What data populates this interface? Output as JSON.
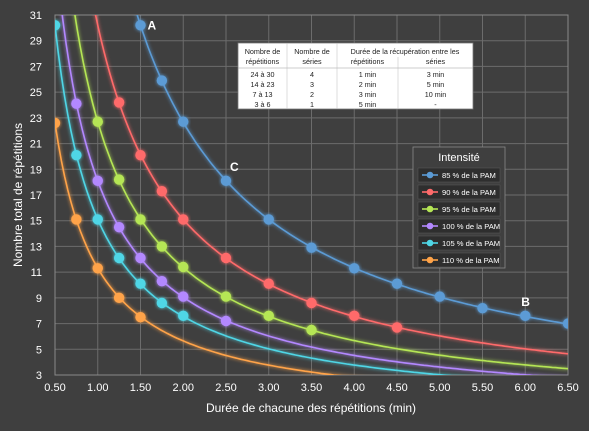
{
  "chart_data": {
    "type": "line",
    "xlabel": "Durée de chacune des répétitions (min)",
    "ylabel": "Nombre total de répétitions",
    "xlim": [
      0.5,
      6.5
    ],
    "ylim": [
      3,
      31
    ],
    "xticks": [
      0.5,
      1.0,
      1.5,
      2.0,
      2.5,
      3.0,
      3.5,
      4.0,
      4.5,
      5.0,
      5.5,
      6.0,
      6.5
    ],
    "xtick_labels": [
      "0.50",
      "1.00",
      "1.50",
      "2.00",
      "2.50",
      "3.00",
      "3.50",
      "4.00",
      "4.50",
      "5.00",
      "5.50",
      "6.00",
      "6.50"
    ],
    "yticks": [
      3,
      5,
      7,
      9,
      11,
      13,
      15,
      17,
      19,
      21,
      23,
      25,
      27,
      29,
      31
    ],
    "grid": true,
    "legend": {
      "title": "Intensité",
      "placement": "right"
    },
    "series": [
      {
        "name": "85 % de la PAM",
        "color": "#5b9bd5",
        "k": 45.3,
        "x": [
          1.5,
          1.75,
          2.0,
          2.5,
          3.0,
          3.5,
          4.0,
          4.5,
          5.0,
          5.5,
          6.0,
          6.5
        ],
        "y": [
          30.2,
          25.9,
          22.7,
          18.1,
          15.1,
          12.9,
          11.3,
          10.1,
          9.1,
          8.2,
          7.6,
          7.0
        ]
      },
      {
        "name": "90 % de la PAM",
        "color": "#ff6b6b",
        "k": 30.2,
        "x": [
          1.25,
          1.5,
          1.75,
          2.0,
          2.5,
          3.0,
          3.5,
          4.0,
          4.5
        ],
        "y": [
          24.2,
          20.1,
          17.3,
          15.1,
          12.1,
          10.1,
          8.6,
          7.6,
          6.7
        ]
      },
      {
        "name": "95 % de la PAM",
        "color": "#b5e655",
        "k": 22.7,
        "x": [
          1.0,
          1.25,
          1.5,
          1.75,
          2.0,
          2.5,
          3.0,
          3.5
        ],
        "y": [
          22.7,
          18.2,
          15.1,
          13.0,
          11.4,
          9.1,
          7.6,
          6.5
        ]
      },
      {
        "name": "100 % de la PAM",
        "color": "#b388ff",
        "k": 18.1,
        "x": [
          0.75,
          1.0,
          1.25,
          1.5,
          1.75,
          2.0,
          2.5
        ],
        "y": [
          24.1,
          18.1,
          14.5,
          12.1,
          10.3,
          9.1,
          7.2
        ]
      },
      {
        "name": "105 % de la PAM",
        "color": "#4fd6e6",
        "k": 15.1,
        "x": [
          0.5,
          0.75,
          1.0,
          1.25,
          1.5,
          1.75,
          2.0
        ],
        "y": [
          30.2,
          20.1,
          15.1,
          12.1,
          10.1,
          8.6,
          7.6
        ]
      },
      {
        "name": "110 % de la PAM",
        "color": "#ffa348",
        "k": 11.3,
        "x": [
          0.5,
          0.75,
          1.0,
          1.25,
          1.5
        ],
        "y": [
          22.6,
          15.1,
          11.3,
          9.0,
          7.5
        ]
      }
    ],
    "annotations": [
      {
        "text": "A",
        "x": 1.5,
        "y": 30.2
      },
      {
        "text": "B",
        "x": 6.0,
        "y": 7.6
      },
      {
        "text": "C",
        "x": 2.5,
        "y": 18.1
      }
    ]
  },
  "table": {
    "headers": [
      "Nombre de répétitions",
      "Nombre de séries",
      "Durée de la récupération entre les répétitions",
      "Durée de la récupération entre les séries"
    ],
    "header_lines": [
      [
        "Nombre de",
        "répétitions"
      ],
      [
        "Nombre de",
        "séries"
      ],
      [
        "Durée de la récupération entre les",
        "répétitions",
        "séries"
      ]
    ],
    "rows": [
      [
        "24 à 30",
        "4",
        "1 min",
        "3 min"
      ],
      [
        "14 à 23",
        "3",
        "2 min",
        "5 min"
      ],
      [
        "7 à 13",
        "2",
        "3 min",
        "10 min"
      ],
      [
        "3 à 6",
        "1",
        "5 min",
        "-"
      ]
    ]
  }
}
